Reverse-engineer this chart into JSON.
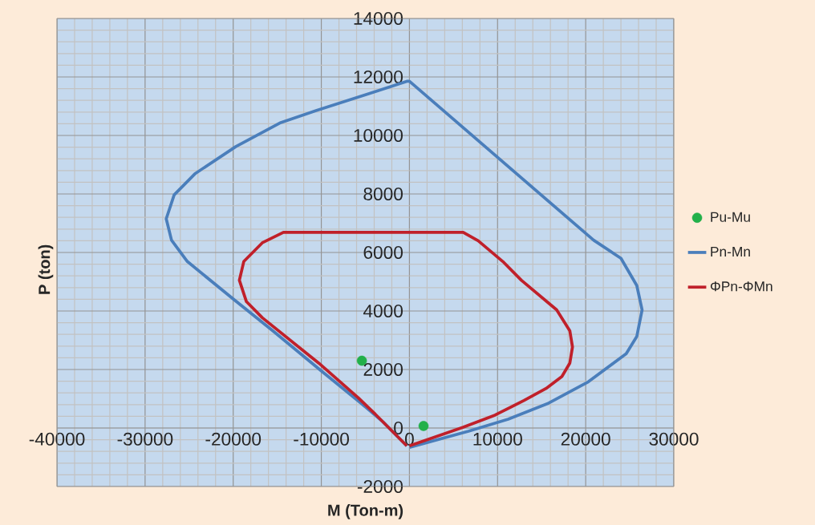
{
  "chart_data": {
    "type": "line",
    "xlabel": "M (Ton-m)",
    "ylabel": "P (ton)",
    "xlim": [
      -40000,
      30000
    ],
    "ylim": [
      -2000,
      14000
    ],
    "xticks": [
      -40000,
      -30000,
      -20000,
      -10000,
      0,
      10000,
      20000,
      30000
    ],
    "yticks": [
      -2000,
      0,
      2000,
      4000,
      6000,
      8000,
      10000,
      12000,
      14000
    ],
    "grid": true,
    "legend": "right",
    "line_style": "solid",
    "series": [
      {
        "name": "Pu-Mu",
        "type": "scatter",
        "marker": "circle",
        "color": "#22b04a",
        "x": [
          -5400,
          1600
        ],
        "values": [
          2300,
          70
        ]
      },
      {
        "name": "Pn-Mn",
        "marker": "none",
        "color": "#4a7ebb",
        "x": [
          0,
          6700,
          11200,
          15800,
          20300,
          24600,
          25800,
          26400,
          25800,
          24000,
          20900,
          0,
          -300,
          -4500,
          -10600,
          -14600,
          -19700,
          -24300,
          -26700,
          -27600,
          -27000,
          -25200,
          -20000,
          -15500,
          -10000,
          -5500,
          -3000,
          -300
        ],
        "values": [
          -660,
          -110,
          300,
          850,
          1580,
          2540,
          3130,
          4040,
          4870,
          5800,
          6420,
          11850,
          11850,
          11440,
          10850,
          10440,
          9620,
          8700,
          7970,
          7150,
          6420,
          5690,
          4410,
          3320,
          1950,
          850,
          210,
          -610
        ]
      },
      {
        "name": "ΦPn-ΦMn",
        "marker": "none",
        "color": "#c0202a",
        "x": [
          0,
          6100,
          9700,
          13000,
          15500,
          17300,
          18200,
          18500,
          18200,
          16700,
          12700,
          10600,
          7800,
          6100,
          -14300,
          -16700,
          -18800,
          -19300,
          -18500,
          -16700,
          -10300,
          -5800,
          -3900,
          -300
        ],
        "values": [
          -610,
          30,
          440,
          940,
          1350,
          1760,
          2220,
          2770,
          3320,
          4040,
          5050,
          5690,
          6400,
          6690,
          6690,
          6330,
          5690,
          5050,
          4320,
          3770,
          2220,
          1030,
          480,
          -610
        ]
      }
    ]
  }
}
